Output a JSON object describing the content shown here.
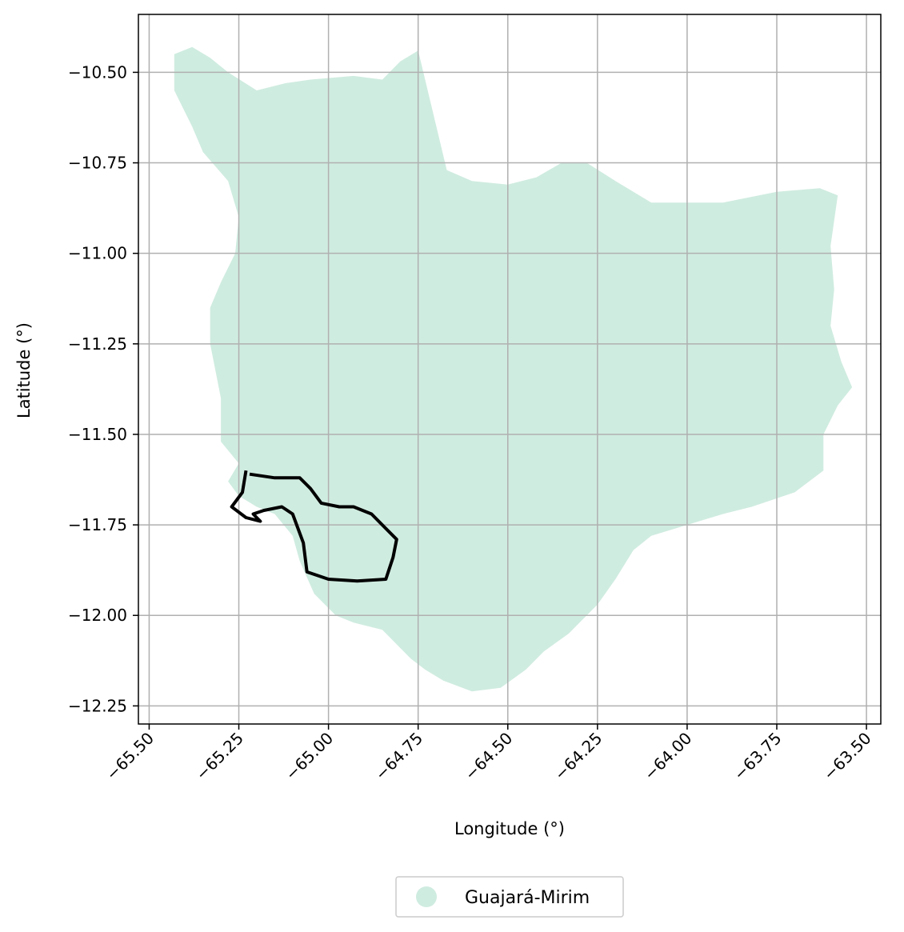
{
  "chart_data": {
    "type": "map",
    "xlabel": "Longitude (°)",
    "ylabel": "Latitude (°)",
    "xlim": [
      -65.53,
      -63.46
    ],
    "ylim": [
      -12.3,
      -10.34
    ],
    "xticks": [
      -65.5,
      -65.25,
      -65.0,
      -64.75,
      -64.5,
      -64.25,
      -64.0,
      -63.75,
      -63.5
    ],
    "xtick_labels": [
      "−65.50",
      "−65.25",
      "−65.00",
      "−64.75",
      "−64.50",
      "−64.25",
      "−64.00",
      "−63.75",
      "−63.50"
    ],
    "yticks": [
      -10.5,
      -10.75,
      -11.0,
      -11.25,
      -11.5,
      -11.75,
      -12.0,
      -12.25
    ],
    "ytick_labels": [
      "−10.50",
      "−10.75",
      "−11.00",
      "−11.25",
      "−11.50",
      "−11.75",
      "−12.00",
      "−12.25"
    ],
    "grid": true,
    "legend": {
      "placement": "bottom-center",
      "entries": [
        {
          "label": "Guajará-Mirim",
          "color": "#cfece0"
        }
      ]
    },
    "region": {
      "name": "Guajará-Mirim",
      "fill": "#cfece0",
      "boundary": [
        [
          -65.43,
          -10.45
        ],
        [
          -65.38,
          -10.43
        ],
        [
          -65.33,
          -10.46
        ],
        [
          -65.28,
          -10.5
        ],
        [
          -65.2,
          -10.55
        ],
        [
          -65.12,
          -10.53
        ],
        [
          -65.05,
          -10.52
        ],
        [
          -64.93,
          -10.51
        ],
        [
          -64.85,
          -10.52
        ],
        [
          -64.8,
          -10.47
        ],
        [
          -64.75,
          -10.44
        ],
        [
          -64.67,
          -10.77
        ],
        [
          -64.6,
          -10.8
        ],
        [
          -64.5,
          -10.81
        ],
        [
          -64.42,
          -10.79
        ],
        [
          -64.35,
          -10.75
        ],
        [
          -64.28,
          -10.75
        ],
        [
          -64.2,
          -10.8
        ],
        [
          -64.1,
          -10.86
        ],
        [
          -64.0,
          -10.86
        ],
        [
          -63.9,
          -10.86
        ],
        [
          -63.75,
          -10.83
        ],
        [
          -63.63,
          -10.82
        ],
        [
          -63.58,
          -10.84
        ],
        [
          -63.6,
          -10.98
        ],
        [
          -63.59,
          -11.1
        ],
        [
          -63.6,
          -11.2
        ],
        [
          -63.57,
          -11.3
        ],
        [
          -63.54,
          -11.37
        ],
        [
          -63.58,
          -11.42
        ],
        [
          -63.62,
          -11.5
        ],
        [
          -63.62,
          -11.6
        ],
        [
          -63.7,
          -11.66
        ],
        [
          -63.82,
          -11.7
        ],
        [
          -63.9,
          -11.72
        ],
        [
          -64.0,
          -11.75
        ],
        [
          -64.1,
          -11.78
        ],
        [
          -64.15,
          -11.82
        ],
        [
          -64.2,
          -11.9
        ],
        [
          -64.25,
          -11.97
        ],
        [
          -64.33,
          -12.05
        ],
        [
          -64.4,
          -12.1
        ],
        [
          -64.45,
          -12.15
        ],
        [
          -64.52,
          -12.2
        ],
        [
          -64.6,
          -12.21
        ],
        [
          -64.68,
          -12.18
        ],
        [
          -64.73,
          -12.15
        ],
        [
          -64.77,
          -12.12
        ],
        [
          -64.85,
          -12.04
        ],
        [
          -64.93,
          -12.02
        ],
        [
          -64.98,
          -12.0
        ],
        [
          -65.04,
          -11.94
        ],
        [
          -65.08,
          -11.85
        ],
        [
          -65.1,
          -11.78
        ],
        [
          -65.15,
          -11.72
        ],
        [
          -65.2,
          -11.7
        ],
        [
          -65.25,
          -11.67
        ],
        [
          -65.28,
          -11.63
        ],
        [
          -65.25,
          -11.58
        ],
        [
          -65.3,
          -11.52
        ],
        [
          -65.3,
          -11.4
        ],
        [
          -65.33,
          -11.25
        ],
        [
          -65.33,
          -11.15
        ],
        [
          -65.3,
          -11.08
        ],
        [
          -65.26,
          -11.0
        ],
        [
          -65.25,
          -10.9
        ],
        [
          -65.28,
          -10.8
        ],
        [
          -65.35,
          -10.72
        ],
        [
          -65.38,
          -10.65
        ],
        [
          -65.43,
          -10.55
        ]
      ]
    },
    "highlighted_boundary": {
      "stroke": "#000000",
      "points": [
        [
          -65.22,
          -11.61
        ],
        [
          -65.15,
          -11.62
        ],
        [
          -65.08,
          -11.62
        ],
        [
          -65.05,
          -11.65
        ],
        [
          -65.02,
          -11.69
        ],
        [
          -64.97,
          -11.7
        ],
        [
          -64.93,
          -11.7
        ],
        [
          -64.88,
          -11.72
        ],
        [
          -64.84,
          -11.76
        ],
        [
          -64.81,
          -11.79
        ],
        [
          -64.82,
          -11.84
        ],
        [
          -64.84,
          -11.9
        ],
        [
          -64.92,
          -11.905
        ],
        [
          -65.0,
          -11.9
        ],
        [
          -65.06,
          -11.88
        ],
        [
          -65.07,
          -11.8
        ],
        [
          -65.1,
          -11.72
        ],
        [
          -65.13,
          -11.7
        ],
        [
          -65.18,
          -11.71
        ],
        [
          -65.21,
          -11.72
        ],
        [
          -65.19,
          -11.74
        ],
        [
          -65.23,
          -11.73
        ],
        [
          -65.27,
          -11.7
        ],
        [
          -65.24,
          -11.66
        ],
        [
          -65.23,
          -11.6
        ]
      ]
    }
  }
}
